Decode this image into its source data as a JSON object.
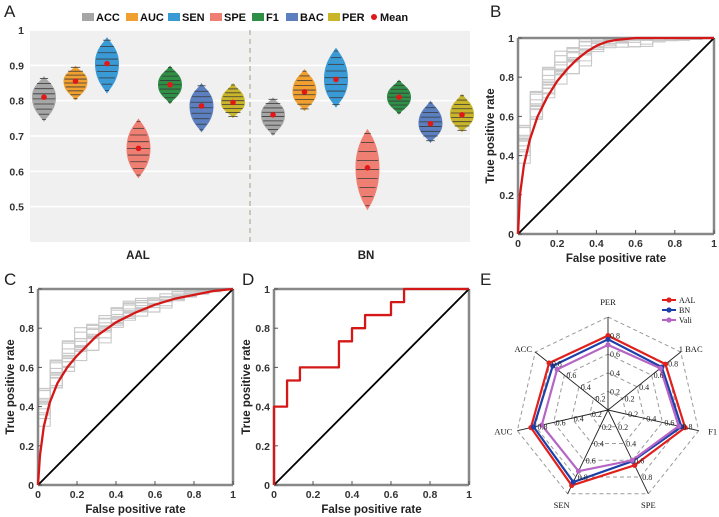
{
  "panels": {
    "A": "A",
    "B": "B",
    "C": "C",
    "D": "D",
    "E": "E"
  },
  "chart_data": [
    {
      "panel": "A",
      "type": "violin",
      "legend": [
        "ACC",
        "AUC",
        "SEN",
        "SPE",
        "F1",
        "BAC",
        "PER"
      ],
      "mean_label": "Mean",
      "colors": [
        "#a6a6a6",
        "#f0a030",
        "#3a9ad6",
        "#ef7f72",
        "#2f8f47",
        "#5b7fbf",
        "#c9b52a"
      ],
      "mean_color": "#e01818",
      "groups": [
        "AAL",
        "BN"
      ],
      "ylim": [
        0.4,
        1.0
      ],
      "yticks": [
        0.5,
        0.6,
        0.7,
        0.8,
        0.9,
        1.0
      ],
      "ytick_labels": [
        "0.5",
        "0.6",
        "0.7",
        "0.8",
        "0.9",
        "1"
      ],
      "series": [
        {
          "group": "AAL",
          "metric": "ACC",
          "mean": 0.81,
          "min": 0.74,
          "max": 0.87
        },
        {
          "group": "AAL",
          "metric": "AUC",
          "mean": 0.855,
          "min": 0.8,
          "max": 0.9
        },
        {
          "group": "AAL",
          "metric": "SEN",
          "mean": 0.905,
          "min": 0.82,
          "max": 0.98
        },
        {
          "group": "AAL",
          "metric": "SPE",
          "mean": 0.665,
          "min": 0.58,
          "max": 0.75
        },
        {
          "group": "AAL",
          "metric": "F1",
          "mean": 0.845,
          "min": 0.79,
          "max": 0.9
        },
        {
          "group": "AAL",
          "metric": "BAC",
          "mean": 0.785,
          "min": 0.71,
          "max": 0.85
        },
        {
          "group": "AAL",
          "metric": "PER",
          "mean": 0.795,
          "min": 0.75,
          "max": 0.85
        },
        {
          "group": "BN",
          "metric": "ACC",
          "mean": 0.76,
          "min": 0.7,
          "max": 0.81
        },
        {
          "group": "BN",
          "metric": "AUC",
          "mean": 0.825,
          "min": 0.77,
          "max": 0.89
        },
        {
          "group": "BN",
          "metric": "SEN",
          "mean": 0.86,
          "min": 0.78,
          "max": 0.95
        },
        {
          "group": "BN",
          "metric": "SPE",
          "mean": 0.61,
          "min": 0.49,
          "max": 0.72
        },
        {
          "group": "BN",
          "metric": "F1",
          "mean": 0.81,
          "min": 0.76,
          "max": 0.86
        },
        {
          "group": "BN",
          "metric": "BAC",
          "mean": 0.735,
          "min": 0.68,
          "max": 0.8
        },
        {
          "group": "BN",
          "metric": "PER",
          "mean": 0.76,
          "min": 0.71,
          "max": 0.82
        }
      ]
    },
    {
      "panel": "B",
      "type": "line",
      "xlabel": "False positive rate",
      "ylabel": "True positive rate",
      "xlim": [
        0,
        1
      ],
      "ylim": [
        0,
        1
      ],
      "ticks": [
        "0",
        "0.2",
        "0.4",
        "0.6",
        "0.8",
        "1"
      ],
      "mean_curve": [
        [
          0,
          0
        ],
        [
          0.01,
          0.2
        ],
        [
          0.03,
          0.35
        ],
        [
          0.06,
          0.48
        ],
        [
          0.1,
          0.6
        ],
        [
          0.15,
          0.7
        ],
        [
          0.2,
          0.78
        ],
        [
          0.25,
          0.84
        ],
        [
          0.3,
          0.89
        ],
        [
          0.35,
          0.93
        ],
        [
          0.4,
          0.96
        ],
        [
          0.45,
          0.98
        ],
        [
          0.5,
          0.99
        ],
        [
          0.6,
          1.0
        ],
        [
          1,
          1
        ]
      ]
    },
    {
      "panel": "C",
      "type": "line",
      "xlabel": "False positive rate",
      "ylabel": "True positive rate",
      "xlim": [
        0,
        1
      ],
      "ylim": [
        0,
        1
      ],
      "ticks": [
        "0",
        "0.2",
        "0.4",
        "0.6",
        "0.8",
        "1"
      ],
      "mean_curve": [
        [
          0,
          0
        ],
        [
          0.01,
          0.15
        ],
        [
          0.03,
          0.3
        ],
        [
          0.06,
          0.42
        ],
        [
          0.1,
          0.52
        ],
        [
          0.15,
          0.6
        ],
        [
          0.2,
          0.66
        ],
        [
          0.3,
          0.76
        ],
        [
          0.4,
          0.83
        ],
        [
          0.5,
          0.88
        ],
        [
          0.6,
          0.92
        ],
        [
          0.7,
          0.95
        ],
        [
          0.8,
          0.97
        ],
        [
          0.9,
          0.99
        ],
        [
          1,
          1
        ]
      ]
    },
    {
      "panel": "D",
      "type": "line",
      "xlabel": "False positive rate",
      "ylabel": "True positive rate",
      "xlim": [
        0,
        1
      ],
      "ylim": [
        0,
        1
      ],
      "ticks": [
        "0",
        "0.2",
        "0.4",
        "0.6",
        "0.8",
        "1"
      ],
      "roc_curve": [
        [
          0,
          0
        ],
        [
          0,
          0.4
        ],
        [
          0.067,
          0.4
        ],
        [
          0.067,
          0.533
        ],
        [
          0.133,
          0.533
        ],
        [
          0.133,
          0.6
        ],
        [
          0.333,
          0.6
        ],
        [
          0.333,
          0.733
        ],
        [
          0.4,
          0.733
        ],
        [
          0.4,
          0.8
        ],
        [
          0.467,
          0.8
        ],
        [
          0.467,
          0.867
        ],
        [
          0.6,
          0.867
        ],
        [
          0.6,
          0.933
        ],
        [
          0.667,
          0.933
        ],
        [
          0.667,
          1.0
        ],
        [
          1,
          1
        ]
      ]
    },
    {
      "panel": "E",
      "type": "radar",
      "axes": [
        "PER",
        "BAC",
        "F1",
        "SPE",
        "SEN",
        "AUC",
        "ACC"
      ],
      "axis_text": [
        "PER",
        "1 BAC",
        "F1",
        "SPE",
        "SEN",
        "AUC",
        "ACC"
      ],
      "tick_values": [
        0.2,
        0.4,
        0.6,
        0.8
      ],
      "tick_labels": [
        "0.2",
        "0.4",
        "0.6",
        "0.8",
        "1"
      ],
      "rlim": [
        0,
        1
      ],
      "series": [
        {
          "name": "AAL",
          "color": "#e0201c",
          "values": [
            0.8,
            0.79,
            0.85,
            0.66,
            0.9,
            0.85,
            0.81
          ]
        },
        {
          "name": "BN",
          "color": "#1c3fa8",
          "values": [
            0.76,
            0.74,
            0.81,
            0.61,
            0.86,
            0.82,
            0.76
          ]
        },
        {
          "name": "Vali",
          "color": "#b566c4",
          "values": [
            0.7,
            0.72,
            0.78,
            0.6,
            0.73,
            0.73,
            0.7
          ]
        }
      ]
    }
  ]
}
